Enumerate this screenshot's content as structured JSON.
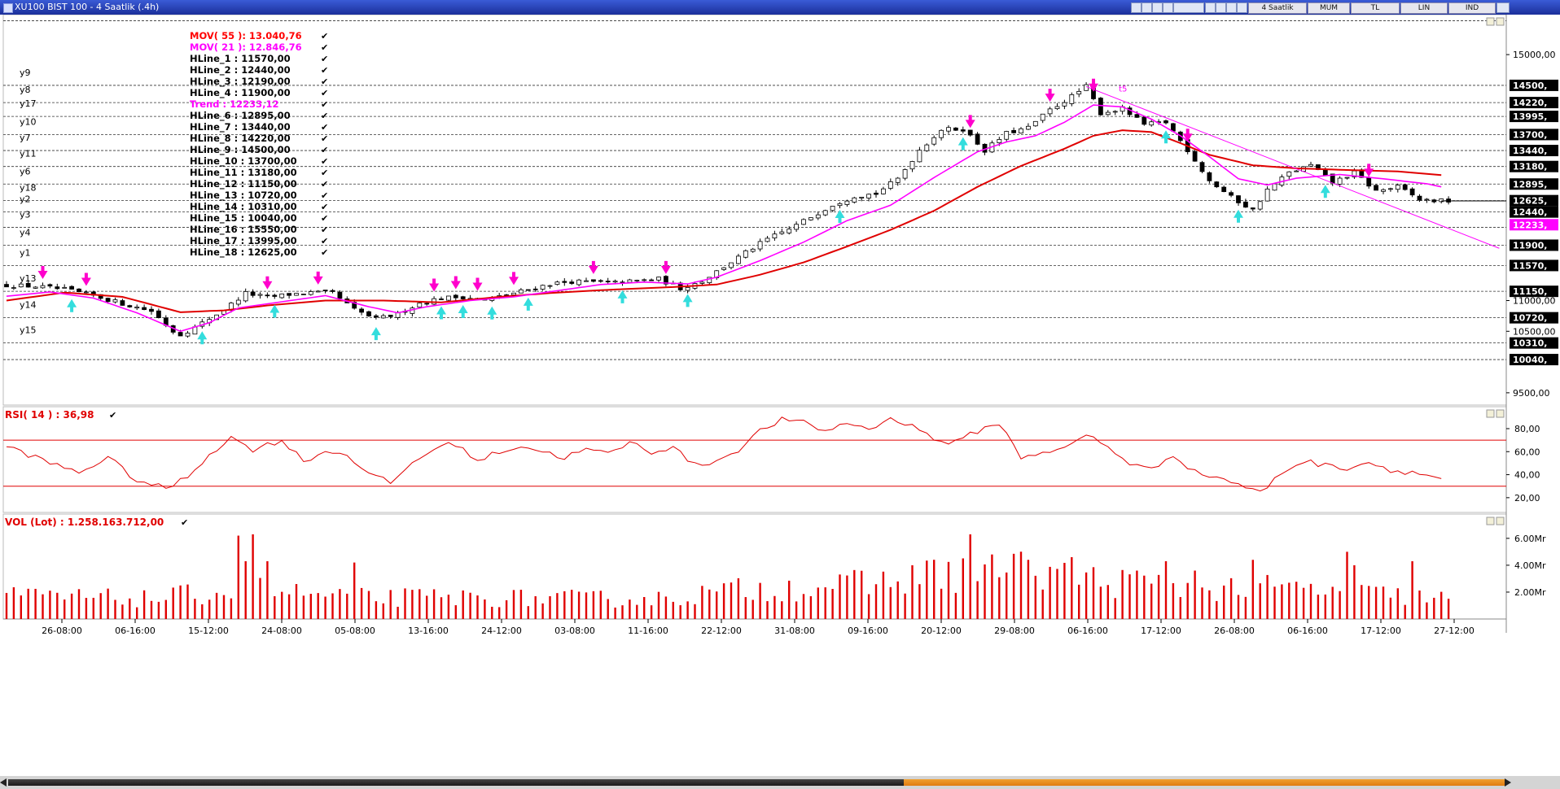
{
  "window": {
    "title": "XU100 BIST 100 - 4 Saatlik (.4h)"
  },
  "toolbar": {
    "buttons": [
      "4 Saatlik",
      "MUM",
      "TL",
      "LIN",
      "IND"
    ]
  },
  "price_panel": {
    "ylabels": [
      "15000,00",
      "11000,00",
      "10500,00",
      "9500,00"
    ],
    "right_labels": [
      {
        "text": "14500,",
        "value": 14500,
        "bg": "#000000"
      },
      {
        "text": "14220,",
        "value": 14220,
        "bg": "#000000"
      },
      {
        "text": "13995,",
        "value": 13995,
        "bg": "#000000"
      },
      {
        "text": "13700,",
        "value": 13700,
        "bg": "#000000"
      },
      {
        "text": "13440,",
        "value": 13440,
        "bg": "#000000"
      },
      {
        "text": "13180,",
        "value": 13180,
        "bg": "#000000"
      },
      {
        "text": "12895,",
        "value": 12895,
        "bg": "#000000"
      },
      {
        "text": "12625,",
        "value": 12625,
        "bg": "#000000"
      },
      {
        "text": "12440,",
        "value": 12440,
        "bg": "#000000"
      },
      {
        "text": "12233,",
        "value": 12233,
        "bg": "#ff00ff"
      },
      {
        "text": "11900,",
        "value": 11900,
        "bg": "#000000"
      },
      {
        "text": "11570,",
        "value": 11570,
        "bg": "#000000"
      },
      {
        "text": "11150,",
        "value": 11150,
        "bg": "#000000"
      },
      {
        "text": "10720,",
        "value": 10720,
        "bg": "#000000"
      },
      {
        "text": "10310,",
        "value": 10310,
        "bg": "#000000"
      },
      {
        "text": "10040,",
        "value": 10040,
        "bg": "#000000"
      }
    ],
    "hline_names": [
      {
        "name": "y9",
        "value": 14500
      },
      {
        "name": "y8",
        "value": 14220
      },
      {
        "name": "y17",
        "value": 13995
      },
      {
        "name": "y10",
        "value": 13700
      },
      {
        "name": "y7",
        "value": 13440
      },
      {
        "name": "y11",
        "value": 13180
      },
      {
        "name": "y6",
        "value": 12895
      },
      {
        "name": "y18",
        "value": 12625
      },
      {
        "name": "y2",
        "value": 12440
      },
      {
        "name": "y3",
        "value": 12190
      },
      {
        "name": "y4",
        "value": 11900
      },
      {
        "name": "y1",
        "value": 11570
      },
      {
        "name": "y13",
        "value": 11150
      },
      {
        "name": "y14",
        "value": 10720
      },
      {
        "name": "y15",
        "value": 10310
      }
    ],
    "trend_label": "t5",
    "legend": [
      {
        "text": "MOV( 55 ): 13.040,76",
        "color": "#ff0000"
      },
      {
        "text": "MOV( 21 ): 12.846,76",
        "color": "#ff00ff"
      },
      {
        "text": "HLine_1    : 11570,00",
        "color": "#000000"
      },
      {
        "text": "HLine_2    : 12440,00",
        "color": "#000000"
      },
      {
        "text": "HLine_3    : 12190,00",
        "color": "#000000"
      },
      {
        "text": "HLine_4    : 11900,00",
        "color": "#000000"
      },
      {
        "text": "Trend       : 12233,12",
        "color": "#ff00ff"
      },
      {
        "text": "HLine_6    : 12895,00",
        "color": "#000000"
      },
      {
        "text": "HLine_7    : 13440,00",
        "color": "#000000"
      },
      {
        "text": "HLine_8    : 14220,00",
        "color": "#000000"
      },
      {
        "text": "HLine_9    : 14500,00",
        "color": "#000000"
      },
      {
        "text": "HLine_10  : 13700,00",
        "color": "#000000"
      },
      {
        "text": "HLine_11  : 13180,00",
        "color": "#000000"
      },
      {
        "text": "HLine_12  : 11150,00",
        "color": "#000000"
      },
      {
        "text": "HLine_13  : 10720,00",
        "color": "#000000"
      },
      {
        "text": "HLine_14  : 10310,00",
        "color": "#000000"
      },
      {
        "text": "HLine_15  : 10040,00",
        "color": "#000000"
      },
      {
        "text": "HLine_16  : 15550,00",
        "color": "#000000"
      },
      {
        "text": "HLine_17  : 13995,00",
        "color": "#000000"
      },
      {
        "text": "HLine_18  : 12625,00",
        "color": "#000000"
      }
    ]
  },
  "rsi_panel": {
    "title": "RSI( 14 ) : 36,98",
    "ylabels": [
      "80,00",
      "60,00",
      "40,00",
      "20,00"
    ],
    "bands": [
      70,
      30
    ]
  },
  "vol_panel": {
    "title": "VOL (Lot) : 1.258.163.712,00",
    "ylabels": [
      "6.00Mr",
      "4.00Mr",
      "2.00Mr"
    ]
  },
  "x_axis": {
    "labels": [
      "26-08:00",
      "06-16:00",
      "15-12:00",
      "24-08:00",
      "05-08:00",
      "13-16:00",
      "24-12:00",
      "03-08:00",
      "11-16:00",
      "22-12:00",
      "31-08:00",
      "09-16:00",
      "20-12:00",
      "29-08:00",
      "06-16:00",
      "17-12:00",
      "26-08:00",
      "06-16:00",
      "17-12:00",
      "27-12:00"
    ]
  },
  "colors": {
    "mov55": "#e00000",
    "mov21": "#ff00ff",
    "rsi": "#e00000",
    "volume": "#e00000",
    "buy_arrow": "#33dddd",
    "sell_arrow": "#ff00cc"
  },
  "chart_data": [
    {
      "type": "candlestick",
      "title": "XU100 BIST 100 - 4 Saatlik (.4h)",
      "x_tick_labels": [
        "26-08:00",
        "06-16:00",
        "15-12:00",
        "24-08:00",
        "05-08:00",
        "13-16:00",
        "24-12:00",
        "03-08:00",
        "11-16:00",
        "22-12:00",
        "31-08:00",
        "09-16:00",
        "20-12:00",
        "29-08:00",
        "06-16:00",
        "17-12:00",
        "26-08:00",
        "06-16:00",
        "17-12:00",
        "27-12:00"
      ],
      "ylim": [
        9300,
        15650
      ],
      "close_path": [
        [
          0,
          11250
        ],
        [
          4,
          11230
        ],
        [
          8,
          11180
        ],
        [
          12,
          11080
        ],
        [
          16,
          10950
        ],
        [
          20,
          10830
        ],
        [
          23,
          10500
        ],
        [
          24,
          10450
        ],
        [
          26,
          10560
        ],
        [
          30,
          10850
        ],
        [
          33,
          11120
        ],
        [
          36,
          11050
        ],
        [
          39,
          11100
        ],
        [
          42,
          11130
        ],
        [
          45,
          11120
        ],
        [
          48,
          10850
        ],
        [
          51,
          10700
        ],
        [
          54,
          10780
        ],
        [
          57,
          10960
        ],
        [
          60,
          11040
        ],
        [
          63,
          11060
        ],
        [
          66,
          11010
        ],
        [
          69,
          11090
        ],
        [
          72,
          11180
        ],
        [
          75,
          11270
        ],
        [
          78,
          11310
        ],
        [
          81,
          11300
        ],
        [
          84,
          11290
        ],
        [
          87,
          11320
        ],
        [
          90,
          11350
        ],
        [
          93,
          11200
        ],
        [
          96,
          11320
        ],
        [
          99,
          11550
        ],
        [
          102,
          11780
        ],
        [
          105,
          12000
        ],
        [
          108,
          12160
        ],
        [
          111,
          12360
        ],
        [
          114,
          12560
        ],
        [
          117,
          12700
        ],
        [
          120,
          12740
        ],
        [
          123,
          12980
        ],
        [
          126,
          13450
        ],
        [
          129,
          13780
        ],
        [
          132,
          13790
        ],
        [
          135,
          13440
        ],
        [
          138,
          13720
        ],
        [
          141,
          13810
        ],
        [
          144,
          14100
        ],
        [
          147,
          14320
        ],
        [
          149,
          14480
        ],
        [
          151,
          14050
        ],
        [
          154,
          14120
        ],
        [
          157,
          13860
        ],
        [
          160,
          13900
        ],
        [
          163,
          13450
        ],
        [
          166,
          12950
        ],
        [
          169,
          12680
        ],
        [
          172,
          12470
        ],
        [
          174,
          12800
        ],
        [
          177,
          13080
        ],
        [
          180,
          13200
        ],
        [
          183,
          12920
        ],
        [
          186,
          13080
        ],
        [
          189,
          12780
        ],
        [
          192,
          12850
        ],
        [
          195,
          12640
        ],
        [
          198,
          12620
        ]
      ],
      "mov21_path": [
        [
          0,
          11070
        ],
        [
          6,
          11140
        ],
        [
          12,
          11040
        ],
        [
          18,
          10800
        ],
        [
          24,
          10500
        ],
        [
          28,
          10640
        ],
        [
          32,
          10880
        ],
        [
          38,
          10980
        ],
        [
          44,
          11080
        ],
        [
          50,
          10900
        ],
        [
          54,
          10800
        ],
        [
          58,
          10900
        ],
        [
          64,
          11000
        ],
        [
          70,
          11060
        ],
        [
          76,
          11160
        ],
        [
          82,
          11260
        ],
        [
          88,
          11300
        ],
        [
          94,
          11270
        ],
        [
          98,
          11380
        ],
        [
          104,
          11650
        ],
        [
          110,
          11950
        ],
        [
          116,
          12300
        ],
        [
          122,
          12550
        ],
        [
          128,
          13000
        ],
        [
          134,
          13420
        ],
        [
          138,
          13580
        ],
        [
          142,
          13680
        ],
        [
          146,
          13900
        ],
        [
          150,
          14180
        ],
        [
          154,
          14150
        ],
        [
          158,
          13950
        ],
        [
          162,
          13680
        ],
        [
          166,
          13340
        ],
        [
          170,
          12980
        ],
        [
          174,
          12880
        ],
        [
          178,
          12990
        ],
        [
          184,
          13050
        ],
        [
          190,
          12980
        ],
        [
          196,
          12900
        ],
        [
          198,
          12850
        ]
      ],
      "mov55_path": [
        [
          0,
          11000
        ],
        [
          8,
          11130
        ],
        [
          16,
          11060
        ],
        [
          24,
          10810
        ],
        [
          30,
          10840
        ],
        [
          36,
          10920
        ],
        [
          44,
          11000
        ],
        [
          52,
          11000
        ],
        [
          60,
          10970
        ],
        [
          68,
          11060
        ],
        [
          76,
          11130
        ],
        [
          84,
          11180
        ],
        [
          92,
          11220
        ],
        [
          98,
          11260
        ],
        [
          104,
          11420
        ],
        [
          110,
          11620
        ],
        [
          116,
          11880
        ],
        [
          122,
          12150
        ],
        [
          128,
          12460
        ],
        [
          134,
          12850
        ],
        [
          140,
          13190
        ],
        [
          146,
          13470
        ],
        [
          150,
          13680
        ],
        [
          154,
          13770
        ],
        [
          158,
          13740
        ],
        [
          162,
          13560
        ],
        [
          166,
          13370
        ],
        [
          172,
          13200
        ],
        [
          178,
          13150
        ],
        [
          186,
          13120
        ],
        [
          192,
          13100
        ],
        [
          198,
          13040
        ]
      ],
      "hlines": [
        15550,
        14500,
        14220,
        13995,
        13700,
        13440,
        13180,
        12895,
        12625,
        12440,
        12190,
        11900,
        11570,
        11150,
        10720,
        10310,
        10040
      ],
      "trendline": [
        [
          149,
          14480
        ],
        [
          206,
          11850
        ]
      ]
    },
    {
      "type": "line",
      "title": "RSI( 14 ) : 36,98",
      "ylim": [
        10,
        92
      ],
      "bands": [
        70,
        30
      ],
      "values_path": [
        [
          0,
          65
        ],
        [
          6,
          50
        ],
        [
          10,
          42
        ],
        [
          14,
          55
        ],
        [
          18,
          35
        ],
        [
          22,
          28
        ],
        [
          25,
          38
        ],
        [
          28,
          58
        ],
        [
          31,
          72
        ],
        [
          34,
          62
        ],
        [
          38,
          70
        ],
        [
          41,
          52
        ],
        [
          44,
          60
        ],
        [
          47,
          58
        ],
        [
          50,
          40
        ],
        [
          53,
          33
        ],
        [
          56,
          50
        ],
        [
          59,
          63
        ],
        [
          62,
          67
        ],
        [
          65,
          52
        ],
        [
          68,
          60
        ],
        [
          71,
          65
        ],
        [
          74,
          60
        ],
        [
          77,
          55
        ],
        [
          80,
          62
        ],
        [
          83,
          58
        ],
        [
          86,
          68
        ],
        [
          89,
          60
        ],
        [
          92,
          64
        ],
        [
          95,
          48
        ],
        [
          98,
          52
        ],
        [
          101,
          62
        ],
        [
          104,
          78
        ],
        [
          107,
          88
        ],
        [
          110,
          85
        ],
        [
          113,
          78
        ],
        [
          116,
          85
        ],
        [
          119,
          80
        ],
        [
          122,
          88
        ],
        [
          125,
          84
        ],
        [
          128,
          70
        ],
        [
          131,
          68
        ],
        [
          134,
          78
        ],
        [
          137,
          85
        ],
        [
          140,
          55
        ],
        [
          143,
          60
        ],
        [
          146,
          62
        ],
        [
          149,
          75
        ],
        [
          152,
          64
        ],
        [
          155,
          50
        ],
        [
          158,
          44
        ],
        [
          161,
          58
        ],
        [
          164,
          42
        ],
        [
          167,
          38
        ],
        [
          170,
          32
        ],
        [
          173,
          24
        ],
        [
          176,
          42
        ],
        [
          179,
          52
        ],
        [
          182,
          48
        ],
        [
          185,
          46
        ],
        [
          188,
          51
        ],
        [
          191,
          44
        ],
        [
          194,
          42
        ],
        [
          198,
          37
        ]
      ]
    },
    {
      "type": "bar",
      "title": "VOL (Lot) : 1.258.163.712,00",
      "ylim": [
        0,
        7.2
      ],
      "unit": "Mr",
      "profile_path": [
        [
          0,
          1.7
        ],
        [
          20,
          1.5
        ],
        [
          34,
          2.3
        ],
        [
          45,
          1.6
        ],
        [
          60,
          1.6
        ],
        [
          80,
          1.5
        ],
        [
          90,
          1.5
        ],
        [
          100,
          2.1
        ],
        [
          110,
          2.4
        ],
        [
          120,
          2.6
        ],
        [
          128,
          3.3
        ],
        [
          134,
          3.5
        ],
        [
          142,
          3.6
        ],
        [
          150,
          2.9
        ],
        [
          160,
          2.4
        ],
        [
          170,
          2.3
        ],
        [
          180,
          2.2
        ],
        [
          190,
          1.8
        ],
        [
          199,
          1.5
        ]
      ],
      "spikes": [
        [
          32,
          6.2
        ],
        [
          33,
          4.3
        ],
        [
          34,
          6.3
        ],
        [
          36,
          4.3
        ],
        [
          48,
          4.2
        ],
        [
          125,
          4.0
        ],
        [
          133,
          6.3
        ],
        [
          136,
          4.8
        ],
        [
          141,
          4.4
        ],
        [
          147,
          4.6
        ],
        [
          156,
          3.6
        ],
        [
          160,
          4.3
        ],
        [
          164,
          3.6
        ],
        [
          172,
          4.4
        ],
        [
          185,
          5.0
        ],
        [
          186,
          4.0
        ],
        [
          194,
          4.3
        ]
      ]
    }
  ]
}
